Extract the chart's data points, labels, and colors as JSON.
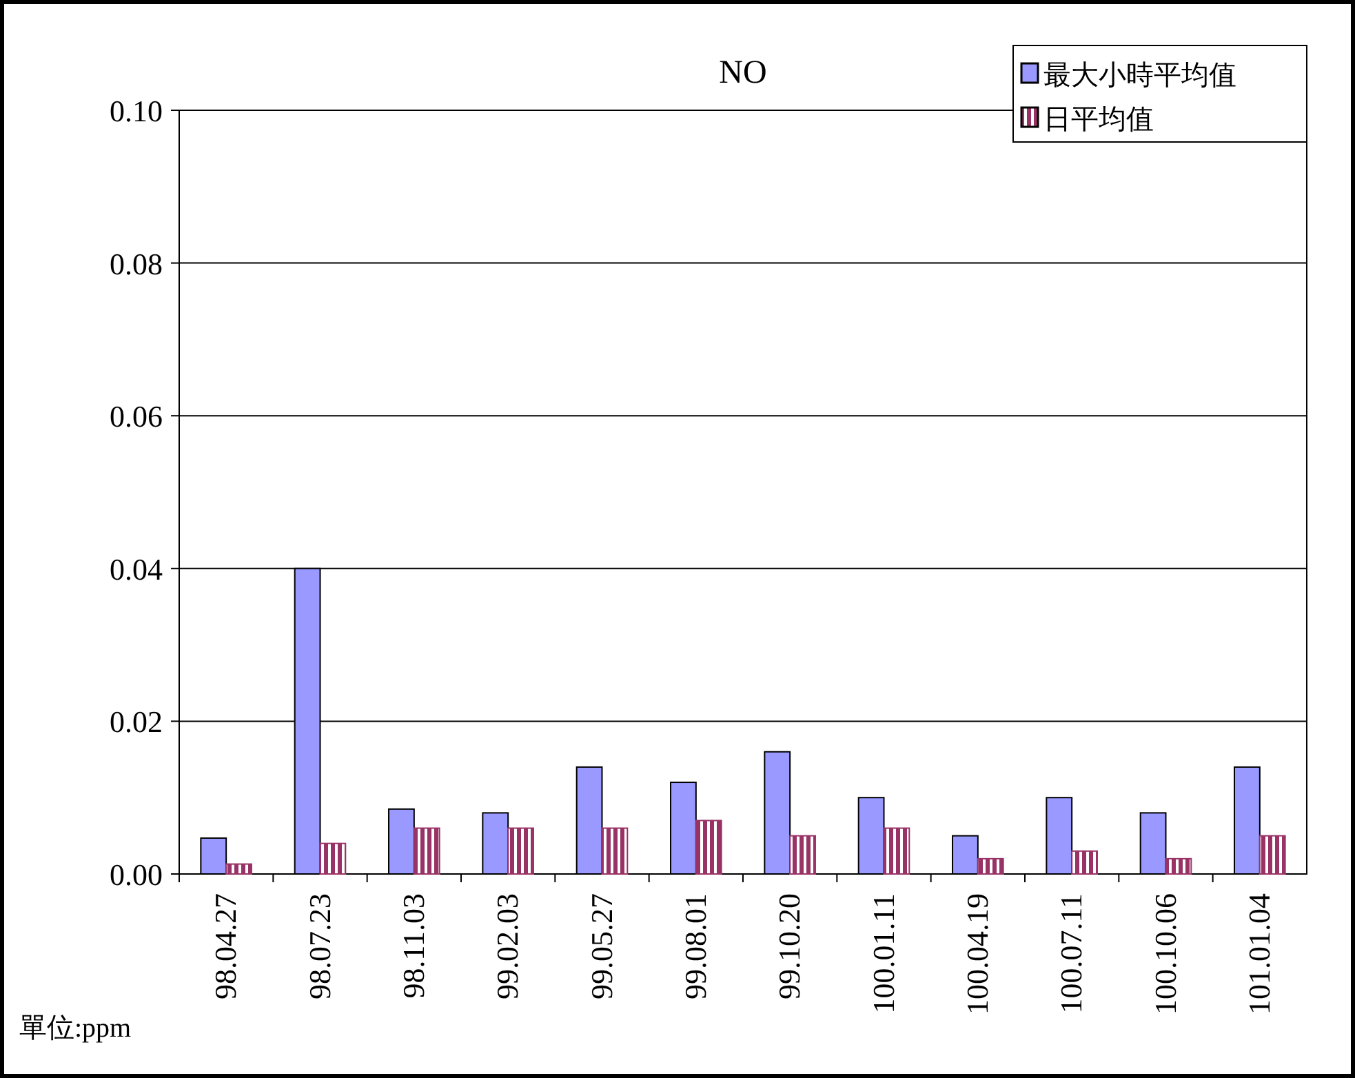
{
  "chart_data": {
    "type": "bar",
    "title": "NO",
    "categories": [
      "98.04.27",
      "98.07.23",
      "98.11.03",
      "99.02.03",
      "99.05.27",
      "99.08.01",
      "99.10.20",
      "100.01.11",
      "100.04.19",
      "100.07.11",
      "100.10.06",
      "101.01.04"
    ],
    "series": [
      {
        "name": "最大小時平均值",
        "color": "#9999ff",
        "values": [
          0.0047,
          0.04,
          0.0085,
          0.008,
          0.014,
          0.012,
          0.016,
          0.01,
          0.005,
          0.01,
          0.008,
          0.014
        ]
      },
      {
        "name": "日平均值",
        "color": "#993366",
        "values": [
          0.0013,
          0.004,
          0.006,
          0.006,
          0.006,
          0.007,
          0.005,
          0.006,
          0.002,
          0.003,
          0.002,
          0.005
        ]
      }
    ],
    "ylim": [
      0,
      0.1
    ],
    "yticks": [
      {
        "value": 0,
        "label": "0.00"
      },
      {
        "value": 0.02,
        "label": "0.02"
      },
      {
        "value": 0.04,
        "label": "0.04"
      },
      {
        "value": 0.06,
        "label": "0.06"
      },
      {
        "value": 0.08,
        "label": "0.08"
      },
      {
        "value": 0.1,
        "label": "0.10"
      }
    ],
    "grid": "y",
    "legend": "top right",
    "annotations": [
      "單位:ppm"
    ]
  }
}
